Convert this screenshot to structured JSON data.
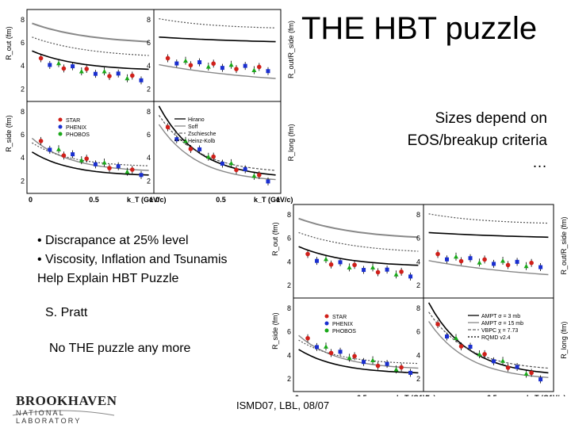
{
  "slide": {
    "title": "THE HBT puzzle",
    "side_text": [
      "Sizes depend on",
      "EOS/breakup criteria",
      "…"
    ],
    "bullets": [
      "• Discrapance at 25% level",
      "• Viscosity, Inflation and Tsunamis",
      "Help Explain HBT Puzzle"
    ],
    "author": "S. Pratt",
    "puzzle_note": "No THE puzzle any more",
    "footer": "ISMD07, LBL, 08/07",
    "logo": {
      "name": "BROOKHAVEN",
      "sub": "NATIONAL LABORATORY"
    }
  },
  "colors": {
    "star": "#d0201a",
    "phenix": "#1a2fd0",
    "phobos": "#1aa81a"
  },
  "figures": [
    {
      "xlabel": "k_T (GeV/c)",
      "x_ticks": [
        "0",
        "0.5",
        "1"
      ],
      "ylabels": [
        "R_out (fm)",
        "R_side (fm)",
        "R_out/R_side (fm)",
        "R_long (fm)"
      ],
      "legend_data": [
        "STAR",
        "PHENIX",
        "PHOBOS"
      ],
      "legend_models": [
        "Hirano",
        "Soff",
        "Zschiesche",
        "Heinz-Kolb"
      ]
    },
    {
      "xlabel": "k_T (GeV/c)",
      "x_ticks": [
        "0",
        "0.5",
        "1"
      ],
      "ylabels": [
        "R_out (fm)",
        "R_side (fm)",
        "R_out/R_side (fm)",
        "R_long (fm)"
      ],
      "legend_data": [
        "STAR",
        "PHENIX",
        "PHOBOS"
      ],
      "legend_models": [
        "AMPT σ = 3 mb",
        "AMPT σ = 15 mb",
        "VBPC χ = 7.73",
        "RQMD v2.4"
      ]
    }
  ]
}
